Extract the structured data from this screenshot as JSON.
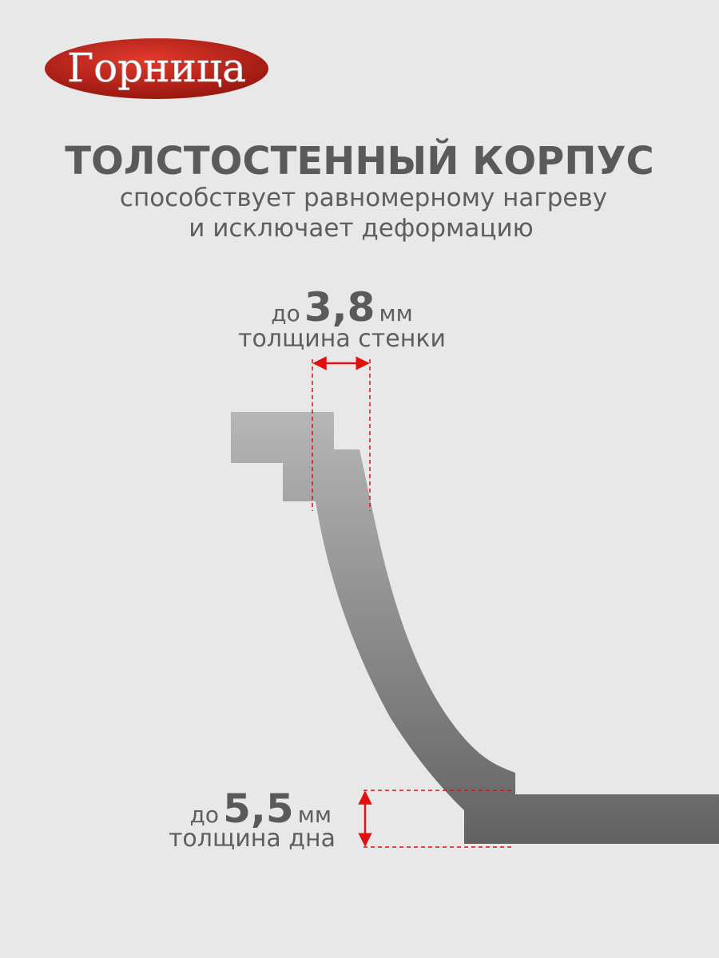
{
  "logo": {
    "text": "Горница"
  },
  "header": {
    "title": "ТОЛСТОСТЕННЫЙ КОРПУС",
    "subtitle_lines": [
      "способствует равномерному нагреву",
      "и исключает деформацию"
    ]
  },
  "wall_label": {
    "prefix": "до",
    "value": "3,8",
    "unit": "мм",
    "caption": "толщина стенки"
  },
  "bottom_label": {
    "prefix": "до",
    "value": "5,5",
    "unit": "мм",
    "caption": "толщина дна"
  }
}
